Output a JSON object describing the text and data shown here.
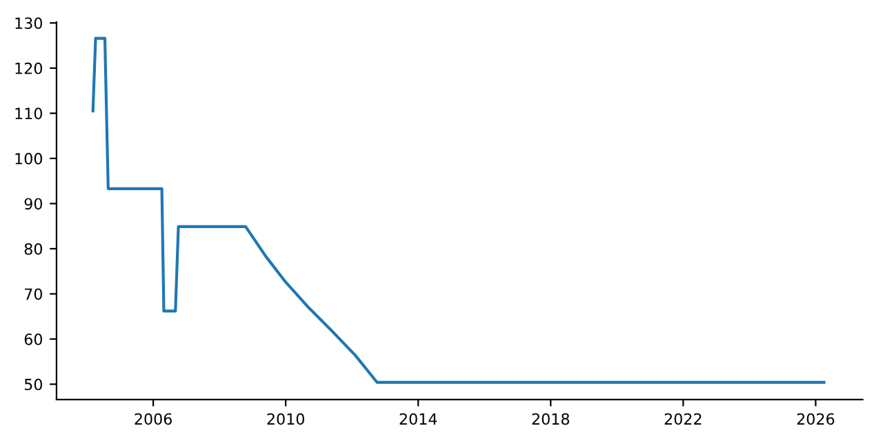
{
  "chart_data": {
    "type": "line",
    "x": [
      2004.18,
      2004.26,
      2004.54,
      2004.64,
      2006.26,
      2006.32,
      2006.67,
      2006.76,
      2008.79,
      2009.4,
      2010.0,
      2010.7,
      2011.38,
      2012.1,
      2012.76,
      2026.25
    ],
    "series": [
      {
        "color": "#1f77b4",
        "values": [
          110.5,
          126.6,
          126.6,
          93.3,
          93.3,
          66.2,
          66.2,
          84.9,
          84.9,
          78.3,
          72.6,
          66.9,
          61.9,
          56.4,
          50.4,
          50.4
        ]
      }
    ],
    "xlim": [
      2003.08,
      2027.42
    ],
    "ylim": [
      46.6,
      130.2
    ],
    "xticks": [
      2006,
      2010,
      2014,
      2018,
      2022,
      2026
    ],
    "yticks": [
      50,
      60,
      70,
      80,
      90,
      100,
      110,
      120,
      130
    ],
    "grid": false
  }
}
